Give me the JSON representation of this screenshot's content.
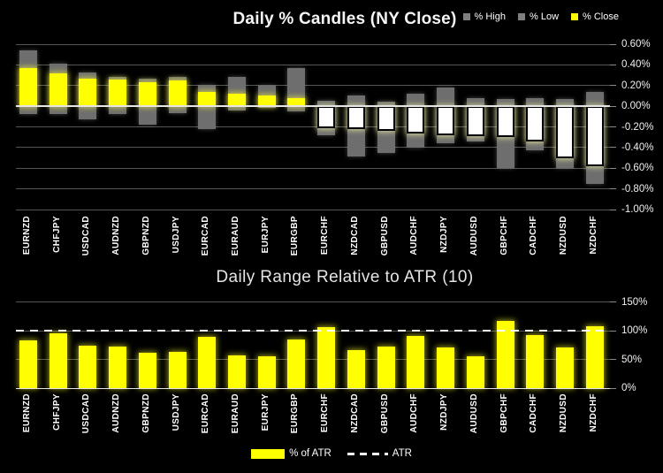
{
  "background": "#000000",
  "chart_data": [
    {
      "type": "bar",
      "subtype": "candle-stack",
      "title": "Daily % Candles (NY Close)",
      "legend_position": "top-right",
      "legend": [
        {
          "label": "% High",
          "color": "#7f7f7f"
        },
        {
          "label": "% Low",
          "color": "#7f7f7f"
        },
        {
          "label": "% Close",
          "color": "#ffff00"
        }
      ],
      "categories": [
        "EURNZD",
        "CHFJPY",
        "USDCAD",
        "AUDNZD",
        "GBPNZD",
        "USDJPY",
        "EURCAD",
        "EURAUD",
        "EURJPY",
        "EURGBP",
        "EURCHF",
        "NZDCAD",
        "GBPUSD",
        "AUDCHF",
        "NZDJPY",
        "AUDUSD",
        "GBPCHF",
        "CADCHF",
        "NZDUSD",
        "NZDCHF"
      ],
      "series": [
        {
          "name": "% High",
          "values": [
            0.54,
            0.41,
            0.33,
            0.28,
            0.27,
            0.28,
            0.21,
            0.28,
            0.2,
            0.37,
            0.05,
            0.1,
            0.04,
            0.12,
            0.18,
            0.08,
            0.07,
            0.08,
            0.07,
            0.14
          ]
        },
        {
          "name": "% Low",
          "values": [
            -0.08,
            -0.08,
            -0.13,
            -0.08,
            -0.18,
            -0.07,
            -0.22,
            -0.04,
            -0.02,
            -0.05,
            -0.28,
            -0.49,
            -0.45,
            -0.4,
            -0.36,
            -0.34,
            -0.6,
            -0.43,
            -0.6,
            -0.75
          ]
        },
        {
          "name": "% Close",
          "values": [
            0.37,
            0.32,
            0.27,
            0.26,
            0.23,
            0.25,
            0.14,
            0.12,
            0.1,
            0.08,
            -0.21,
            -0.22,
            -0.24,
            -0.26,
            -0.28,
            -0.29,
            -0.3,
            -0.34,
            -0.5,
            -0.58
          ]
        }
      ],
      "ylim": [
        -1.0,
        0.6
      ],
      "y_axis_side": "right",
      "grid": true,
      "y_ticks": [
        {
          "value": 0.6,
          "label": "0.60%"
        },
        {
          "value": 0.4,
          "label": "0.40%"
        },
        {
          "value": 0.2,
          "label": "0.20%"
        },
        {
          "value": 0.0,
          "label": "0.00%"
        },
        {
          "value": -0.2,
          "label": "-0.20%"
        },
        {
          "value": -0.4,
          "label": "-0.40%"
        },
        {
          "value": -0.6,
          "label": "-0.60%"
        },
        {
          "value": -0.8,
          "label": "-0.80%"
        },
        {
          "value": -1.0,
          "label": "-1.00%"
        }
      ],
      "colors": {
        "high_low_bar": "#6e6e6e",
        "close_positive": "#ffff00",
        "close_negative": "#ffffff",
        "background": "#000000"
      }
    },
    {
      "type": "bar",
      "title": "Daily Range Relative to ATR (10)",
      "legend_position": "bottom-center",
      "legend": [
        {
          "label": "% of ATR",
          "color": "#ffff00"
        },
        {
          "label": "ATR",
          "style": "dashed-white-line"
        }
      ],
      "categories": [
        "EURNZD",
        "CHFJPY",
        "USDCAD",
        "AUDNZD",
        "GBPNZD",
        "USDJPY",
        "EURCAD",
        "EURAUD",
        "EURJPY",
        "EURGBP",
        "EURCHF",
        "NZDCAD",
        "GBPUSD",
        "AUDCHF",
        "NZDJPY",
        "AUDUSD",
        "GBPCHF",
        "CADCHF",
        "NZDUSD",
        "NZDCHF"
      ],
      "series": [
        {
          "name": "% of ATR",
          "values": [
            84,
            96,
            74,
            73,
            62,
            63,
            89,
            58,
            56,
            85,
            106,
            66,
            73,
            91,
            71,
            56,
            118,
            93,
            71,
            108
          ]
        }
      ],
      "reference_line": {
        "name": "ATR",
        "value": 100,
        "style": "dashed"
      },
      "ylim": [
        0,
        150
      ],
      "y_axis_side": "right",
      "grid": true,
      "y_ticks": [
        {
          "value": 150,
          "label": "150%"
        },
        {
          "value": 100,
          "label": "100%"
        },
        {
          "value": 50,
          "label": "50%"
        },
        {
          "value": 0,
          "label": "0%"
        }
      ],
      "colors": {
        "bar": "#ffff00",
        "reference_line": "#ffffff",
        "background": "#000000"
      }
    }
  ]
}
